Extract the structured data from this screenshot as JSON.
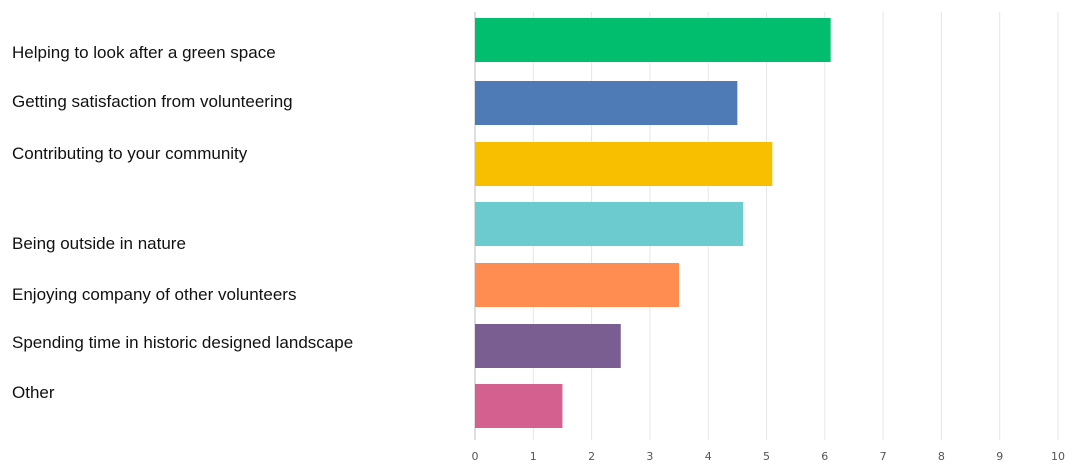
{
  "chart_data": {
    "type": "bar",
    "orientation": "horizontal",
    "title": "",
    "xlabel": "",
    "ylabel": "",
    "xlim": [
      0,
      10
    ],
    "ticks": [
      "0",
      "1",
      "2",
      "3",
      "4",
      "5",
      "6",
      "7",
      "8",
      "9",
      "10"
    ],
    "grid": "vertical",
    "categories": [
      "Helping to look after a green space",
      "Getting satisfaction from volunteering",
      "Contributing to your community",
      "Being outside in nature",
      "Enjoying company of other volunteers",
      "Spending time in historic designed landscape",
      "Other"
    ],
    "values": [
      6.1,
      4.5,
      5.1,
      4.6,
      3.5,
      2.5,
      1.5
    ],
    "colors": [
      "#00be6e",
      "#4e7bb5",
      "#f8bf00",
      "#6ccbcf",
      "#ff8c50",
      "#7b5e91",
      "#d4608f"
    ]
  }
}
